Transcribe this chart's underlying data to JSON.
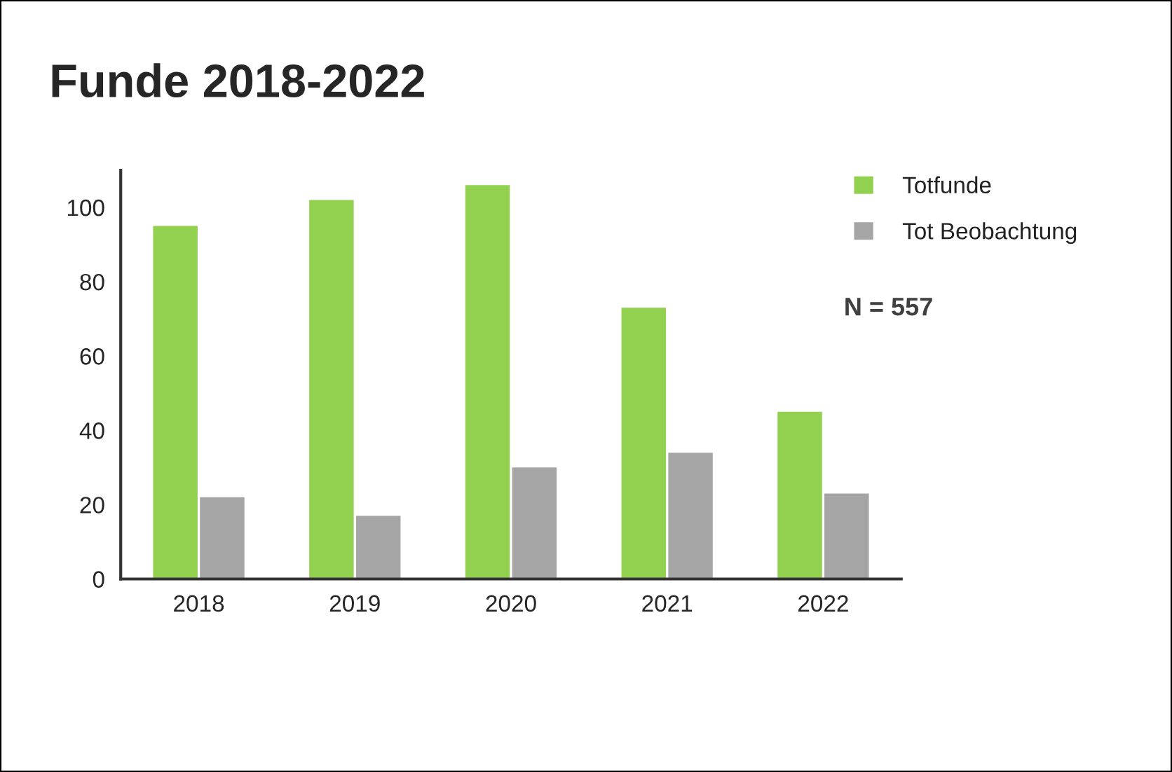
{
  "chart_data": {
    "type": "bar",
    "title": "Funde 2018-2022",
    "categories": [
      "2018",
      "2019",
      "2020",
      "2021",
      "2022"
    ],
    "series": [
      {
        "name": "Totfunde",
        "color": "#92d050",
        "values": [
          95,
          102,
          106,
          73,
          45
        ]
      },
      {
        "name": "Tot Beobachtung",
        "color": "#a5a5a5",
        "values": [
          22,
          17,
          30,
          34,
          23
        ]
      }
    ],
    "ylim": [
      0,
      110
    ],
    "yticks": [
      0,
      20,
      40,
      60,
      80,
      100
    ],
    "annotations": [
      "N = 557"
    ],
    "legend": "top right",
    "grid": false
  }
}
